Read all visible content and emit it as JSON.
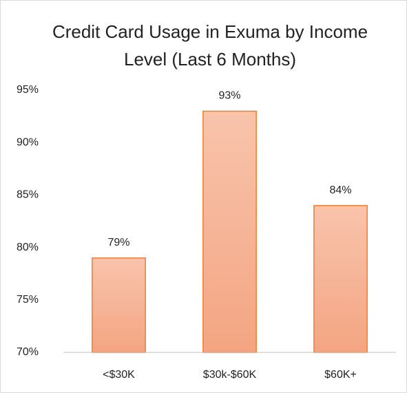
{
  "chart_data": {
    "type": "bar",
    "title": "Credit Card Usage in Exuma by Income Level (Last 6 Months)",
    "categories": [
      "<$30K",
      "$30k-$60K",
      "$60K+"
    ],
    "values": [
      79,
      93,
      84
    ],
    "value_labels": [
      "79%",
      "93%",
      "84%"
    ],
    "color": "#f4a582",
    "ylim": [
      70,
      95
    ],
    "yticks": [
      {
        "value": 70,
        "label": "70%"
      },
      {
        "value": 75,
        "label": "75%"
      },
      {
        "value": 80,
        "label": "80%"
      },
      {
        "value": 85,
        "label": "85%"
      },
      {
        "value": 90,
        "label": "90%"
      },
      {
        "value": 95,
        "label": "95%"
      }
    ],
    "grid": false
  }
}
